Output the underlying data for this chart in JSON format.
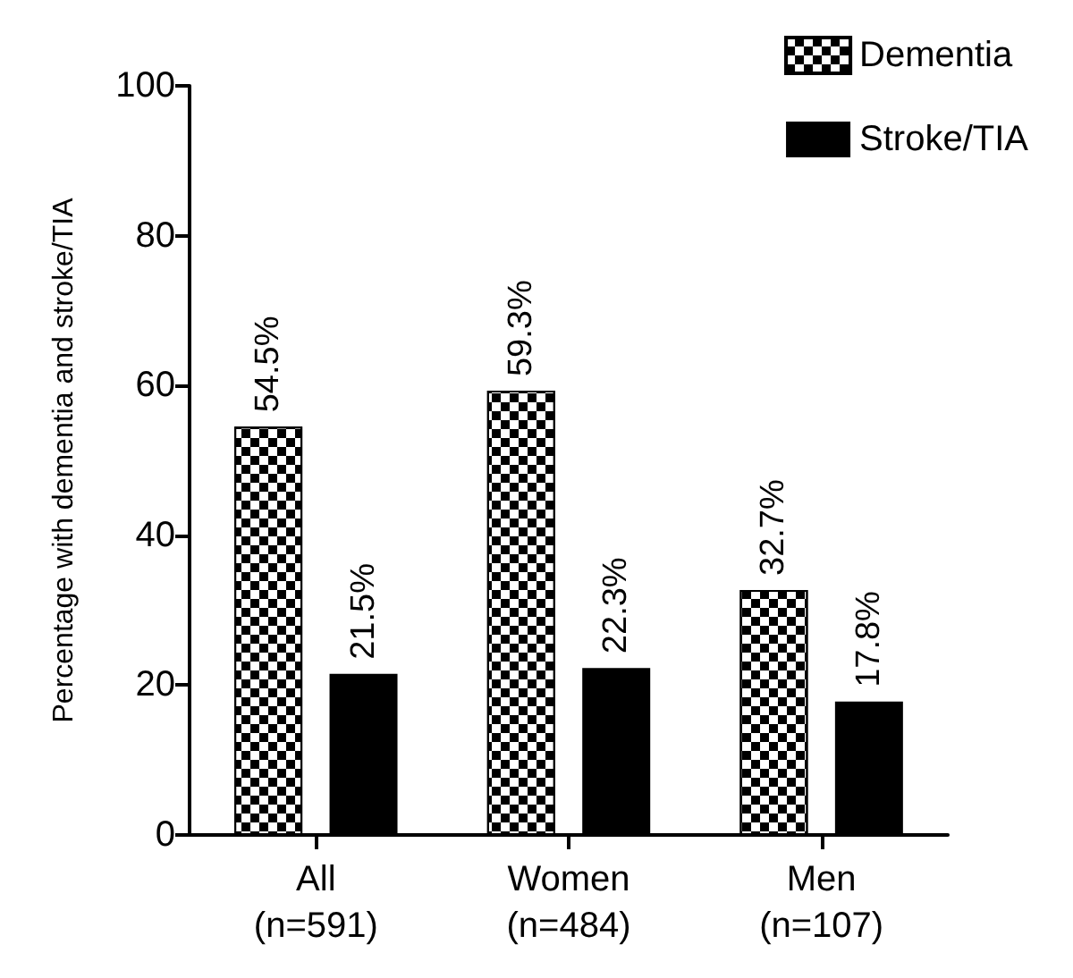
{
  "chart_data": {
    "type": "bar",
    "ylabel": "Percentage with dementia and stroke/TIA",
    "categories": [
      "All\n(n=591)",
      "Women\n(n=484)",
      "Men\n(n=107)"
    ],
    "series": [
      {
        "name": "Dementia",
        "color": "#000000",
        "values": [
          54.5,
          59.3,
          32.7
        ],
        "value_labels": [
          "54.5%",
          "59.3%",
          "32.7%"
        ]
      },
      {
        "name": "Stroke/TIA",
        "color": "#000000",
        "values": [
          21.5,
          22.3,
          17.8
        ],
        "value_labels": [
          "21.5%",
          "22.3%",
          "17.8%"
        ]
      }
    ],
    "ylim": [
      0,
      100
    ],
    "yticks": [
      0,
      20,
      40,
      60,
      80,
      100
    ],
    "grid": false,
    "legend": "top right"
  }
}
